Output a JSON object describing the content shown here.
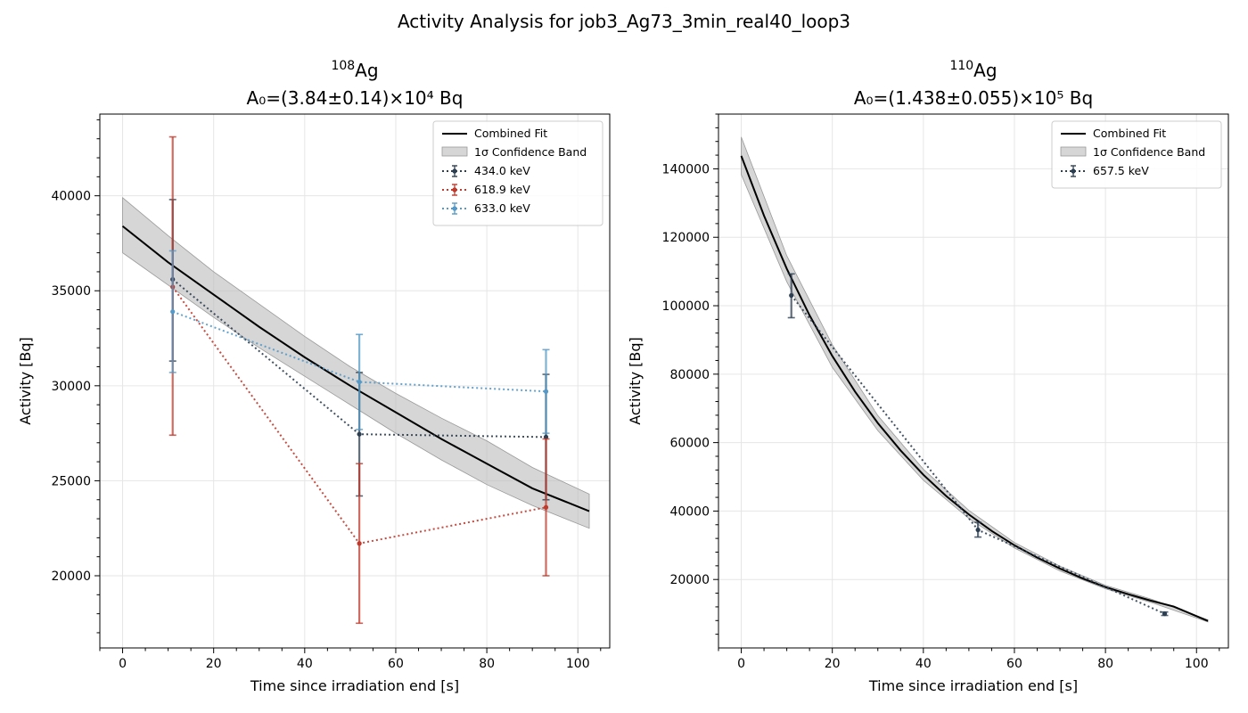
{
  "figure": {
    "title": "Activity Analysis for job3_Ag73_3min_real40_loop3"
  },
  "chart_data": [
    {
      "type": "line",
      "title_isotope_mass": "108",
      "title_isotope_symbol": "Ag",
      "title_activity": "A₀=(3.84±0.14)×10⁴ Bq",
      "xlabel": "Time since irradiation end [s]",
      "ylabel": "Activity [Bq]",
      "xlim": [
        -5,
        107
      ],
      "ylim": [
        16200,
        44300
      ],
      "xticks": [
        0,
        20,
        40,
        60,
        80,
        100
      ],
      "yticks": [
        20000,
        25000,
        30000,
        35000,
        40000
      ],
      "grid": true,
      "legend_position": "top-right",
      "fit": {
        "name": "Combined Fit",
        "color": "#000000",
        "x": [
          0,
          10,
          20,
          30,
          40,
          50,
          60,
          70,
          80,
          90,
          102.5
        ],
        "y": [
          38400,
          36500,
          34800,
          33100,
          31500,
          30000,
          28600,
          27200,
          25900,
          24600,
          23400
        ]
      },
      "band": {
        "name": "1σ Confidence Band",
        "color": "#bbbbbb",
        "x": [
          0,
          10,
          20,
          30,
          40,
          50,
          60,
          70,
          80,
          90,
          102.5
        ],
        "y_low": [
          37000,
          35300,
          33600,
          32000,
          30500,
          29000,
          27500,
          26100,
          24800,
          23700,
          22500
        ],
        "y_high": [
          39900,
          37900,
          36000,
          34300,
          32600,
          31000,
          29600,
          28300,
          27100,
          25700,
          24300
        ]
      },
      "series": [
        {
          "name": "434.0 keV",
          "color": "#2c3e50",
          "x": [
            11,
            52,
            93
          ],
          "y": [
            35600,
            27450,
            27300
          ],
          "yerr_low": [
            31300,
            24200,
            24000
          ],
          "yerr_high": [
            39800,
            30700,
            30600
          ]
        },
        {
          "name": "618.9 keV",
          "color": "#c0392b",
          "x": [
            11,
            52,
            93
          ],
          "y": [
            35200,
            21700,
            23600
          ],
          "yerr_low": [
            27400,
            17500,
            20000
          ],
          "yerr_high": [
            43100,
            25900,
            27200
          ]
        },
        {
          "name": "633.0 keV",
          "color": "#5499c7",
          "x": [
            11,
            52,
            93
          ],
          "y": [
            33900,
            30200,
            29700
          ],
          "yerr_low": [
            30700,
            27700,
            27500
          ],
          "yerr_high": [
            37100,
            32700,
            31900
          ]
        }
      ]
    },
    {
      "type": "line",
      "title_isotope_mass": "110",
      "title_isotope_symbol": "Ag",
      "title_activity": "A₀=(1.438±0.055)×10⁵ Bq",
      "xlabel": "Time since irradiation end [s]",
      "ylabel": "Activity [Bq]",
      "xlim": [
        -5,
        107
      ],
      "ylim": [
        0,
        156000
      ],
      "xticks": [
        0,
        20,
        40,
        60,
        80,
        100
      ],
      "yticks": [
        20000,
        40000,
        60000,
        80000,
        100000,
        120000,
        140000
      ],
      "grid": true,
      "legend_position": "top-right",
      "fit": {
        "name": "Combined Fit",
        "color": "#000000",
        "x": [
          0,
          5,
          10,
          15,
          20,
          25,
          30,
          35,
          40,
          45,
          50,
          55,
          60,
          65,
          70,
          75,
          80,
          85,
          90,
          95,
          102.5
        ],
        "y": [
          143800,
          126300,
          110800,
          97200,
          85300,
          74900,
          65700,
          57700,
          50600,
          44400,
          39000,
          34200,
          30000,
          26400,
          23200,
          20300,
          17800,
          15700,
          13800,
          12100,
          7900
        ]
      },
      "band": {
        "name": "1σ Confidence Band",
        "color": "#bbbbbb",
        "x": [
          0,
          10,
          20,
          30,
          40,
          50,
          60,
          70,
          80,
          90,
          102.5
        ],
        "y_low": [
          138300,
          107000,
          82000,
          63500,
          49000,
          37800,
          29200,
          22500,
          17300,
          13300,
          7600
        ],
        "y_high": [
          149300,
          114600,
          88600,
          67900,
          52200,
          40200,
          30800,
          23900,
          18300,
          14300,
          8200
        ]
      },
      "series": [
        {
          "name": "657.5 keV",
          "color": "#2c3e50",
          "x": [
            11,
            52,
            93
          ],
          "y": [
            103000,
            34500,
            10000
          ],
          "yerr_low": [
            96500,
            32400,
            9500
          ],
          "yerr_high": [
            109300,
            36700,
            10500
          ]
        }
      ]
    }
  ]
}
